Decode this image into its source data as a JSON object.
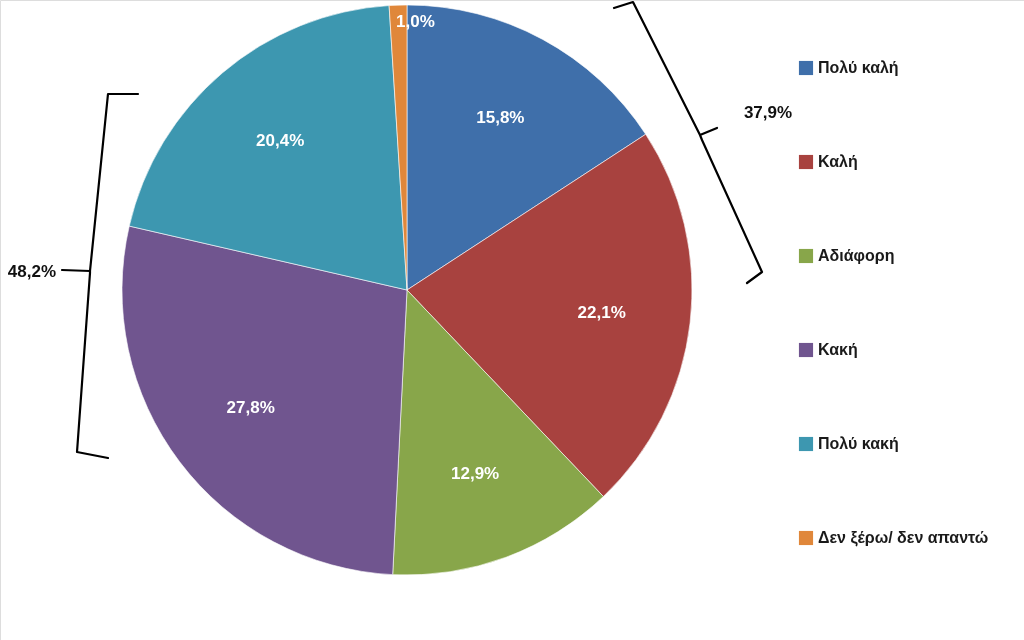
{
  "chart_data": {
    "type": "pie",
    "categories": [
      "Πολύ καλή",
      "Καλή",
      "Αδιάφορη",
      "Κακή",
      "Πολύ κακή",
      "Δεν ξέρω/ δεν απαντώ"
    ],
    "values": [
      15.8,
      22.1,
      12.9,
      27.8,
      20.4,
      1.0
    ],
    "colors": [
      "#3f6faa",
      "#a8423f",
      "#88a64a",
      "#70558f",
      "#3d97b0",
      "#e0873a"
    ],
    "value_labels": [
      "15,8%",
      "22,1%",
      "12,9%",
      "27,8%",
      "20,4%",
      "1,0%"
    ],
    "annotations": [
      "37,9%",
      "48,2%"
    ],
    "legend": "right"
  }
}
